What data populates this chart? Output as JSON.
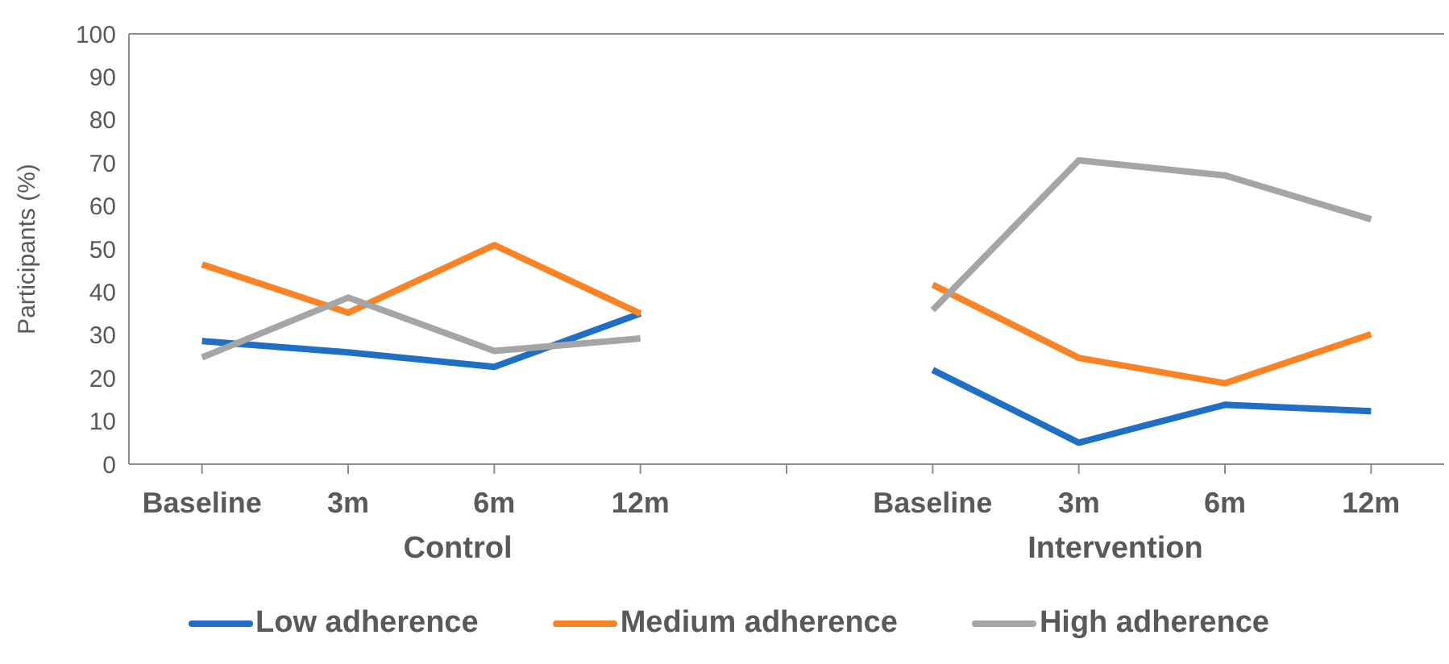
{
  "chart_data": {
    "type": "line",
    "ylabel": "Participants (%)",
    "categories": [
      "Baseline",
      "3m",
      "6m",
      "12m",
      null,
      "Baseline",
      "3m",
      "6m",
      "12m"
    ],
    "series": [
      {
        "name": "Low adherence",
        "color": "#1f6fc5",
        "values": [
          28.6,
          26,
          22.6,
          35,
          null,
          21.9,
          5,
          13.8,
          12.3
        ]
      },
      {
        "name": "Medium adherence",
        "color": "#f98325",
        "values": [
          46.4,
          35.2,
          50.9,
          35,
          null,
          41.7,
          24.7,
          18.8,
          30.2
        ]
      },
      {
        "name": "High adherence",
        "color": "#a5a5a5",
        "values": [
          24.8,
          38.7,
          26.3,
          29.2,
          null,
          35.8,
          70.6,
          67.1,
          56.9
        ]
      }
    ],
    "annotations": [
      "Control",
      "Intervention"
    ],
    "ylim": [
      0,
      100
    ],
    "yticks": [
      0,
      10,
      20,
      30,
      40,
      50,
      60,
      70,
      80,
      90,
      100
    ],
    "grid": false,
    "legend": "bottom"
  }
}
